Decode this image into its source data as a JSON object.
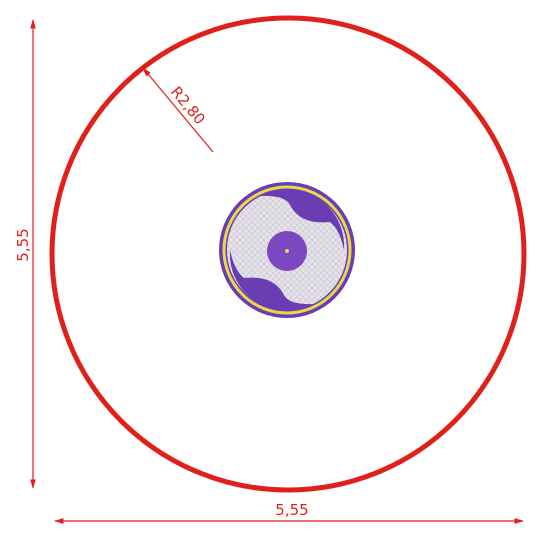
{
  "dimensions": {
    "radius": "R2,80",
    "height": "5,55",
    "width": "5,55"
  }
}
